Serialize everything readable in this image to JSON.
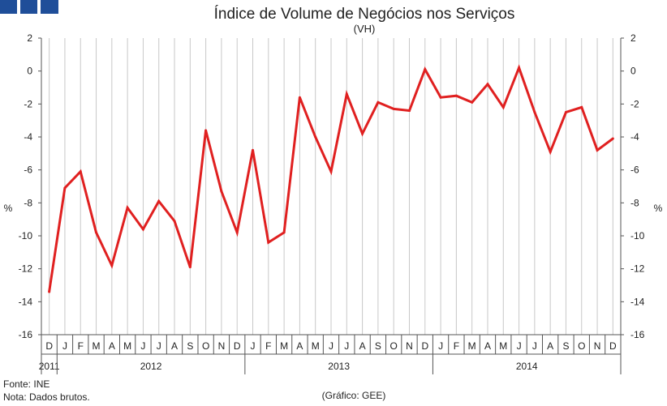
{
  "chart_data": {
    "type": "line",
    "title": "Índice de Volume de Negócios nos Serviços",
    "subtitle": "(VH)",
    "ylabel_left": "%",
    "ylabel_right": "%",
    "ylim": [
      -16,
      2
    ],
    "yticks": [
      2,
      0,
      -2,
      -4,
      -6,
      -8,
      -10,
      -12,
      -14,
      -16
    ],
    "grid": "vertical",
    "months": [
      "D",
      "J",
      "F",
      "M",
      "A",
      "M",
      "J",
      "J",
      "A",
      "S",
      "O",
      "N",
      "D",
      "J",
      "F",
      "M",
      "A",
      "M",
      "J",
      "J",
      "A",
      "S",
      "O",
      "N",
      "D",
      "J",
      "F",
      "M",
      "A",
      "M",
      "J",
      "J",
      "A",
      "S",
      "O",
      "N",
      "D"
    ],
    "years": [
      {
        "label": "2011",
        "start": 0,
        "end": 0
      },
      {
        "label": "2012",
        "start": 1,
        "end": 12
      },
      {
        "label": "2013",
        "start": 13,
        "end": 24
      },
      {
        "label": "2014",
        "start": 25,
        "end": 36
      }
    ],
    "series": [
      {
        "name": "Índice de Volume de Negócios nos Serviços (VH)",
        "color": "#e02020",
        "values": [
          -13.4,
          -7.1,
          -6.1,
          -9.8,
          -11.8,
          -8.3,
          -9.6,
          -7.9,
          -9.1,
          -11.9,
          -3.6,
          -7.3,
          -9.8,
          -4.8,
          -10.4,
          -9.8,
          -1.6,
          -4.0,
          -6.1,
          -1.4,
          -3.8,
          -1.9,
          -2.3,
          -2.4,
          0.1,
          -1.6,
          -1.5,
          -1.9,
          -0.8,
          -2.2,
          0.2,
          -2.5,
          -4.9,
          -2.5,
          -2.2,
          -4.8,
          -4.1
        ]
      }
    ]
  },
  "footer": {
    "source": "Fonte: INE",
    "note": "Nota: Dados brutos.",
    "credit": "(Gráfico: GEE)"
  },
  "colors": {
    "logo": "#1f4e99",
    "line": "#e02020",
    "grid": "#c8c8c8"
  }
}
